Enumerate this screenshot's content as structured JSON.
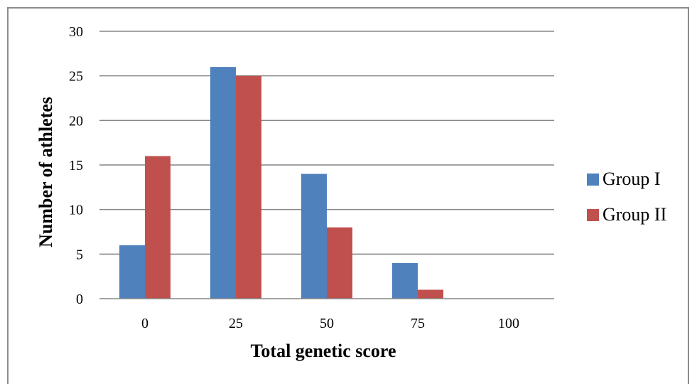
{
  "chart_data": {
    "type": "bar",
    "categories": [
      "0",
      "25",
      "50",
      "75",
      "100"
    ],
    "series": [
      {
        "name": "Group I",
        "color": "#4f81bd",
        "values": [
          6,
          26,
          14,
          4,
          0
        ]
      },
      {
        "name": "Group II",
        "color": "#c0504d",
        "values": [
          16,
          25,
          8,
          1,
          0
        ]
      }
    ],
    "xlabel": "Total genetic score",
    "ylabel": "Number of athletes",
    "ylim": [
      0,
      30
    ],
    "yticks": [
      0,
      5,
      10,
      15,
      20,
      25,
      30
    ],
    "grid": true,
    "legend": "right"
  }
}
